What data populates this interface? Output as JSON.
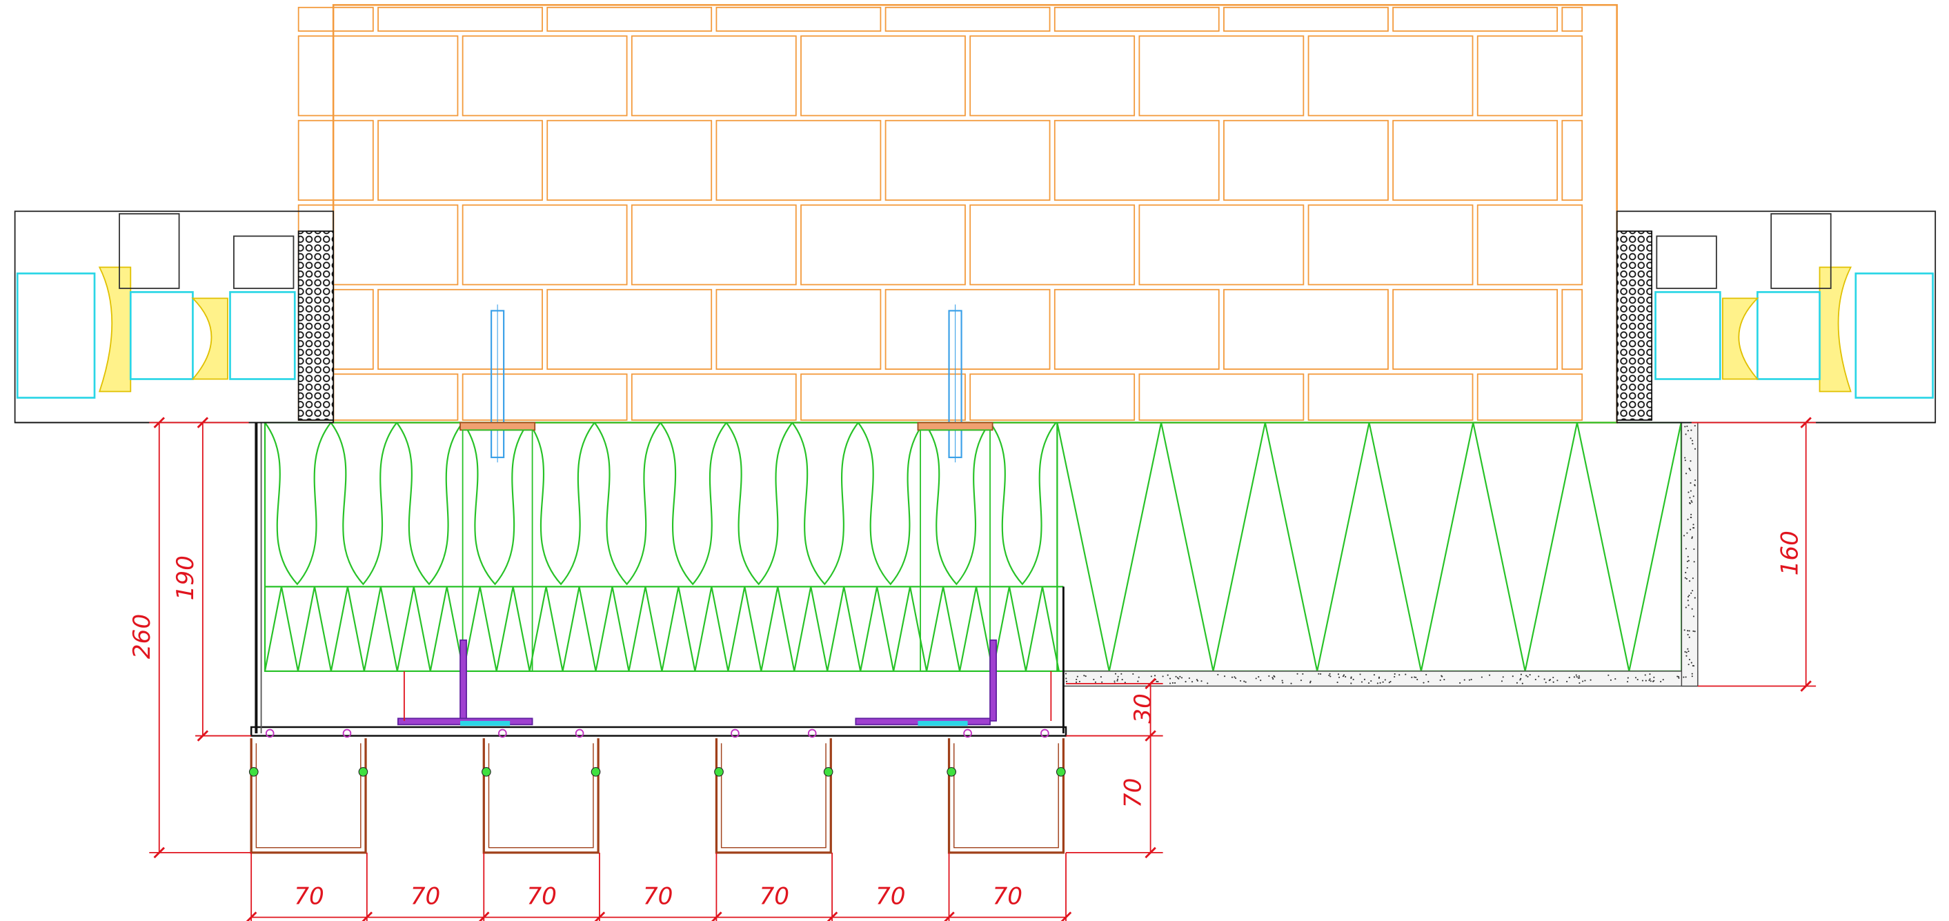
{
  "dimensions": {
    "bottom": [
      "70",
      "70",
      "70",
      "70",
      "70",
      "70",
      "70"
    ],
    "right_upper": "30",
    "right_lower": "70",
    "left_inner": "190",
    "left_outer": "260",
    "far_right": "160"
  }
}
